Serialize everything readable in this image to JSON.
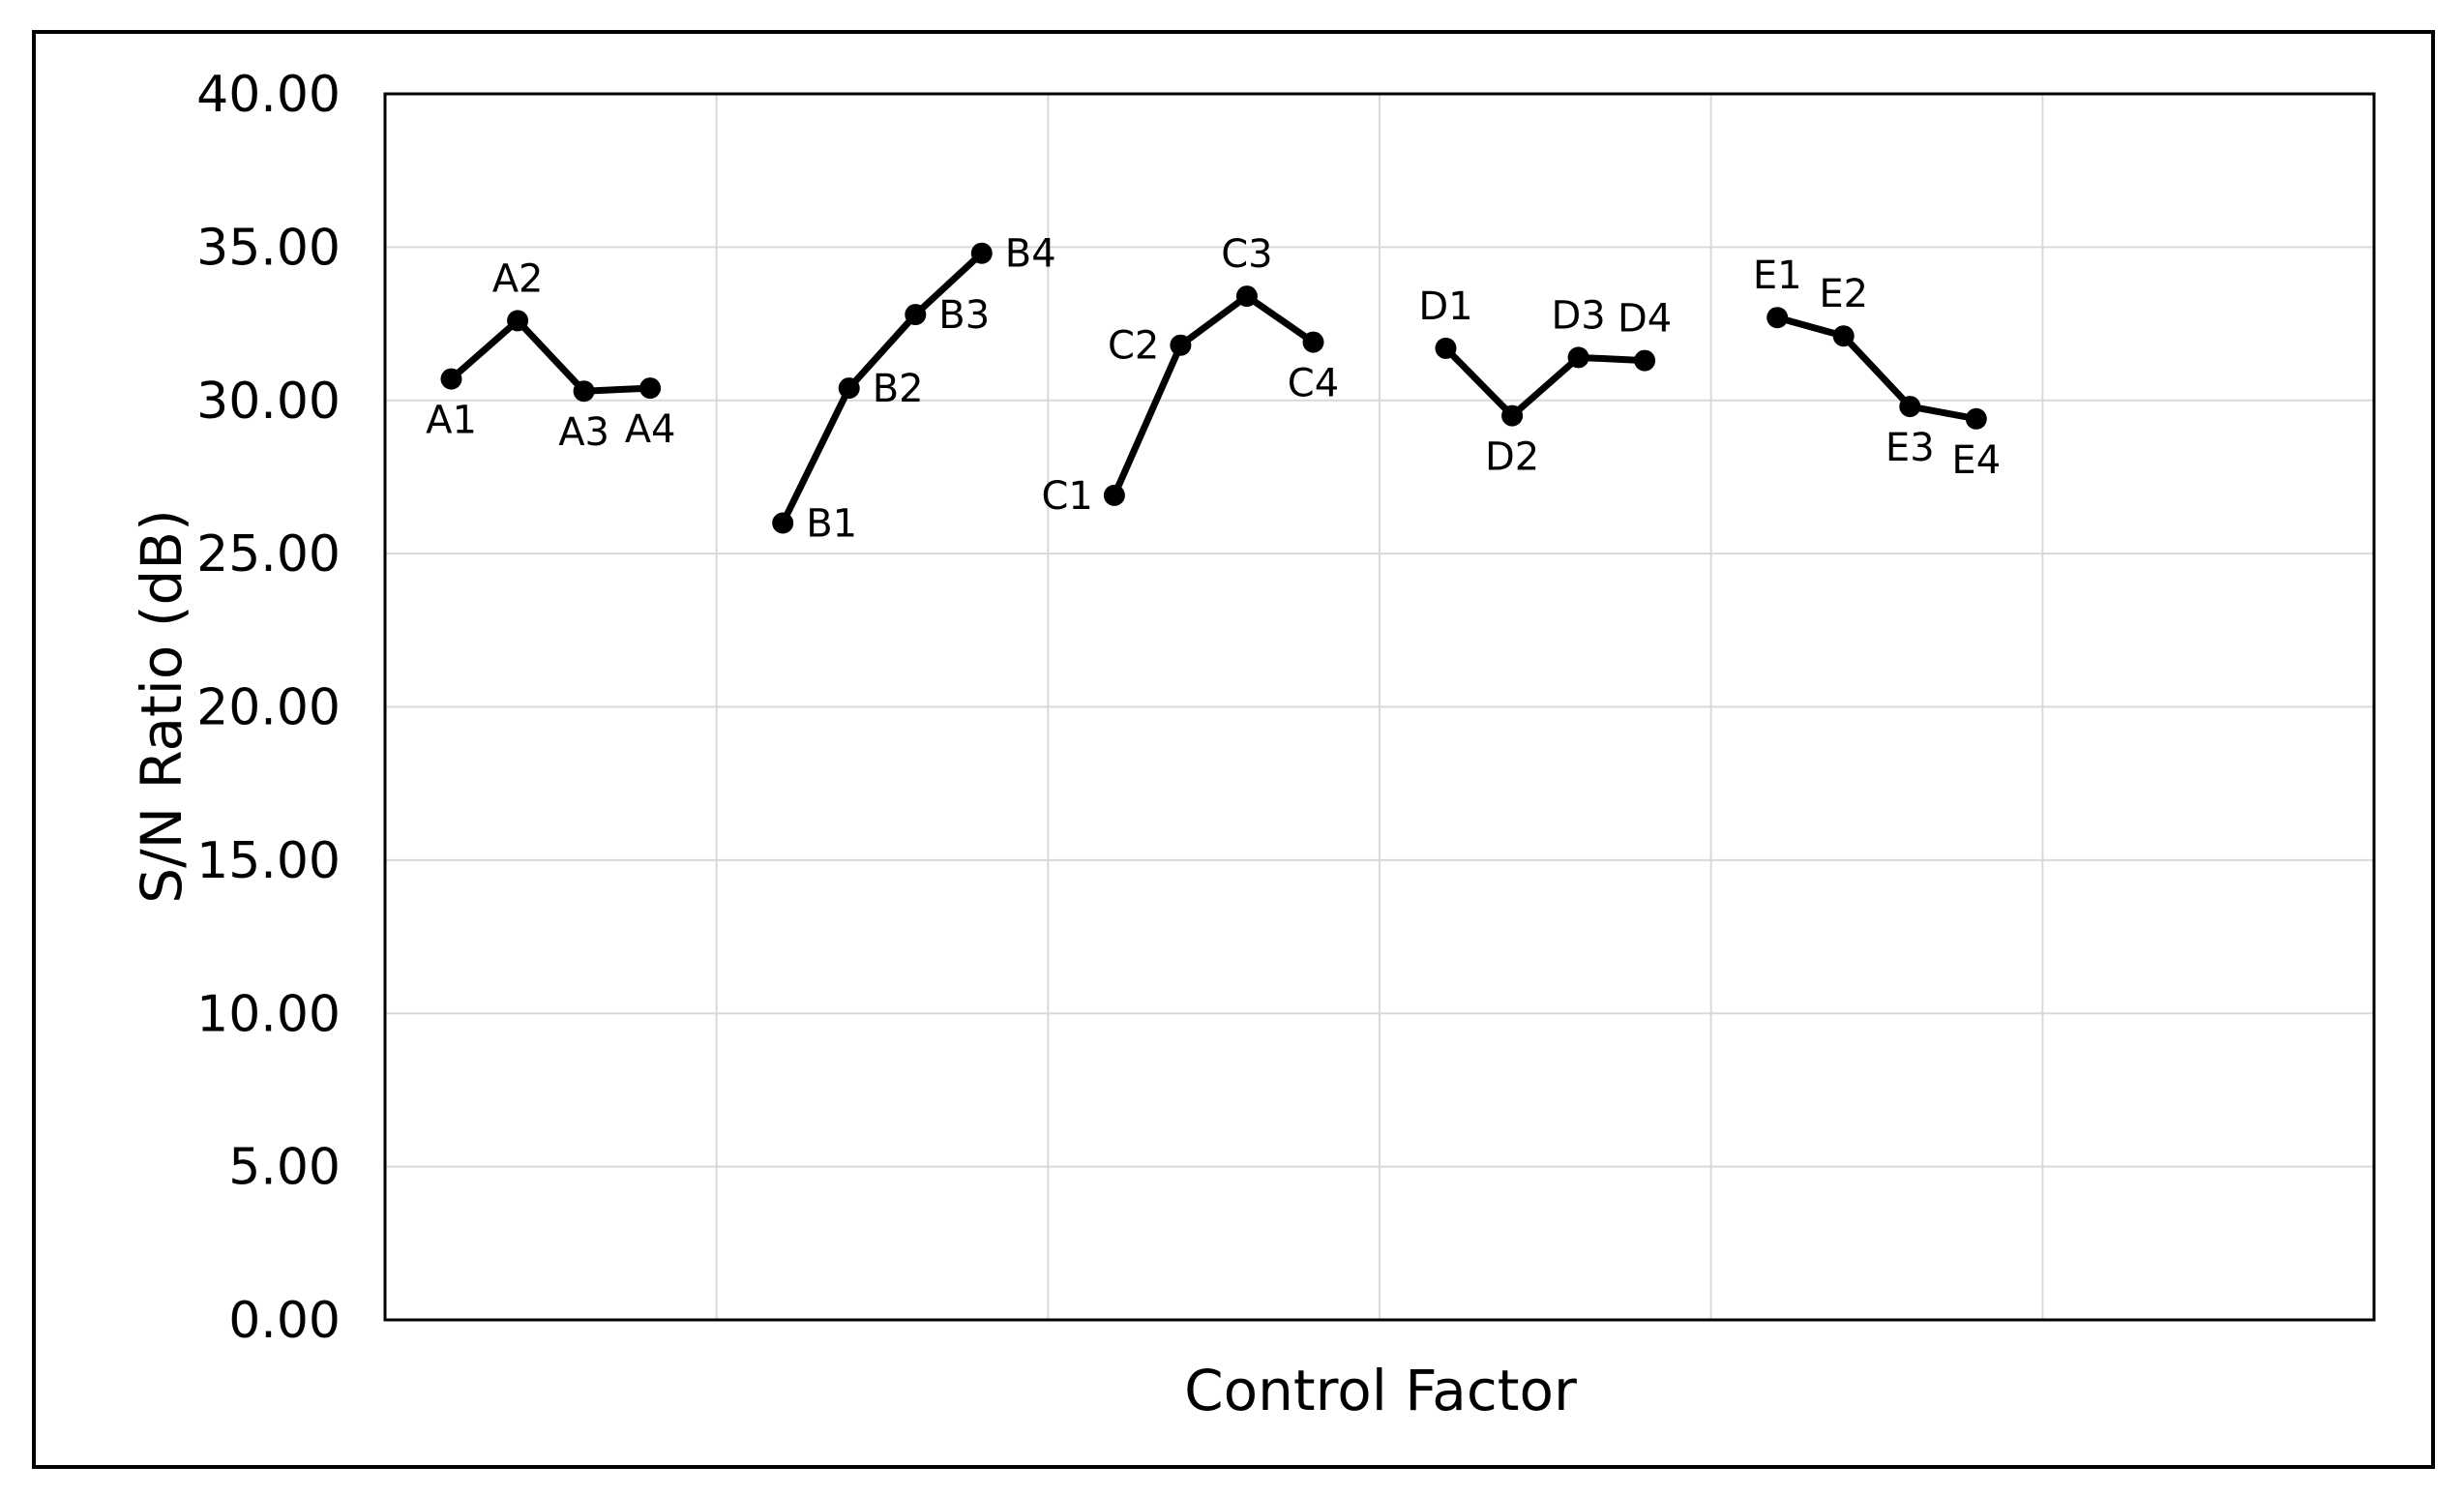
{
  "figure": {
    "background": "#ffffff",
    "border_color": "#000000"
  },
  "chart_data": {
    "type": "line",
    "title": "",
    "xlabel": "Control Factor",
    "ylabel": "S/N Ratio (dB)",
    "ylim": [
      0,
      40
    ],
    "ytick_step": 5,
    "ytick_labels": [
      "0.00",
      "5.00",
      "10.00",
      "15.00",
      "20.00",
      "25.00",
      "30.00",
      "35.00",
      "40.00"
    ],
    "x_slot_max": 30,
    "x_gridline_slots": [
      5,
      10,
      15,
      20,
      25
    ],
    "grid": true,
    "legend_position": "none",
    "line_color": "#000000",
    "grid_color": "#d9d9d9",
    "frame_color": "#000000",
    "marker": "circle",
    "series": [
      {
        "name": "A",
        "points": [
          {
            "label": "A1",
            "slot": 1,
            "value": 30.7,
            "label_pos": "below"
          },
          {
            "label": "A2",
            "slot": 2,
            "value": 32.6,
            "label_pos": "above"
          },
          {
            "label": "A3",
            "slot": 3,
            "value": 30.3,
            "label_pos": "below"
          },
          {
            "label": "A4",
            "slot": 4,
            "value": 30.4,
            "label_pos": "below"
          }
        ]
      },
      {
        "name": "B",
        "points": [
          {
            "label": "B1",
            "slot": 6,
            "value": 26.0,
            "label_pos": "right"
          },
          {
            "label": "B2",
            "slot": 7,
            "value": 30.4,
            "label_pos": "right"
          },
          {
            "label": "B3",
            "slot": 8,
            "value": 32.8,
            "label_pos": "right"
          },
          {
            "label": "B4",
            "slot": 9,
            "value": 34.8,
            "label_pos": "right"
          }
        ]
      },
      {
        "name": "C",
        "points": [
          {
            "label": "C1",
            "slot": 11,
            "value": 26.9,
            "label_pos": "left"
          },
          {
            "label": "C2",
            "slot": 12,
            "value": 31.8,
            "label_pos": "left"
          },
          {
            "label": "C3",
            "slot": 13,
            "value": 33.4,
            "label_pos": "above"
          },
          {
            "label": "C4",
            "slot": 14,
            "value": 31.9,
            "label_pos": "below"
          }
        ]
      },
      {
        "name": "D",
        "points": [
          {
            "label": "D1",
            "slot": 16,
            "value": 31.7,
            "label_pos": "above"
          },
          {
            "label": "D2",
            "slot": 17,
            "value": 29.5,
            "label_pos": "below"
          },
          {
            "label": "D3",
            "slot": 18,
            "value": 31.4,
            "label_pos": "above"
          },
          {
            "label": "D4",
            "slot": 19,
            "value": 31.3,
            "label_pos": "above"
          }
        ]
      },
      {
        "name": "E",
        "points": [
          {
            "label": "E1",
            "slot": 21,
            "value": 32.7,
            "label_pos": "above"
          },
          {
            "label": "E2",
            "slot": 22,
            "value": 32.1,
            "label_pos": "above"
          },
          {
            "label": "E3",
            "slot": 23,
            "value": 29.8,
            "label_pos": "below"
          },
          {
            "label": "E4",
            "slot": 24,
            "value": 29.4,
            "label_pos": "below"
          }
        ]
      }
    ]
  }
}
